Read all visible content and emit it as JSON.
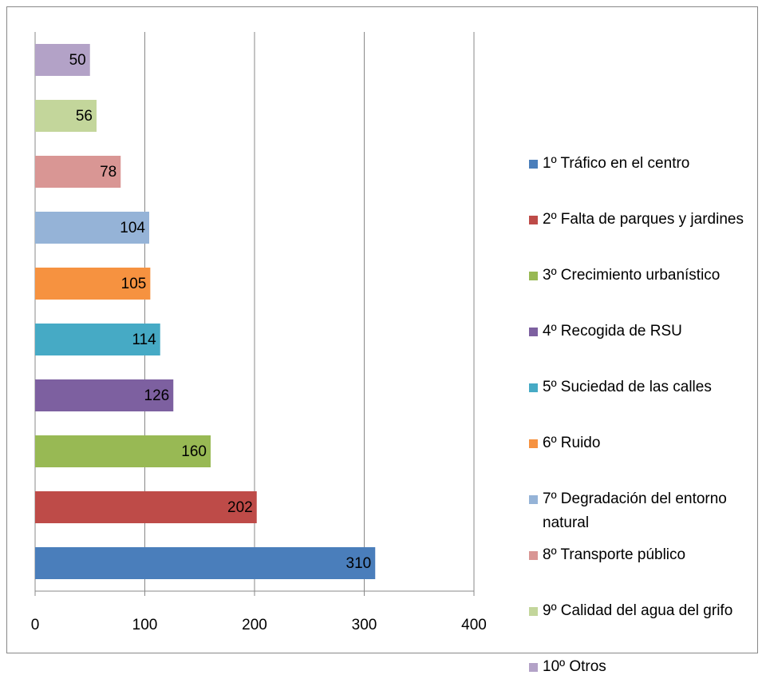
{
  "chart_data": {
    "type": "bar",
    "orientation": "horizontal",
    "categories": [
      "1º Tráfico en el centro",
      "2º Falta de parques y jardines",
      "3º Crecimiento urbanístico",
      "4º Recogida de RSU",
      "5º Suciedad de las calles",
      "6º Ruido",
      "7º Degradación del entorno natural",
      "8º Transporte público",
      "9º Calidad del agua del grifo",
      "10º Otros"
    ],
    "values": [
      310,
      202,
      160,
      126,
      114,
      105,
      104,
      78,
      56,
      50
    ],
    "colors": [
      "#4a7ebb",
      "#be4b48",
      "#98b954",
      "#7d60a0",
      "#46aac5",
      "#f69240",
      "#95b3d7",
      "#d99694",
      "#c3d69b",
      "#b3a2c7"
    ],
    "xlim": [
      0,
      400
    ],
    "xticks": [
      0,
      100,
      200,
      300,
      400
    ],
    "grid": true,
    "legend": "right"
  }
}
